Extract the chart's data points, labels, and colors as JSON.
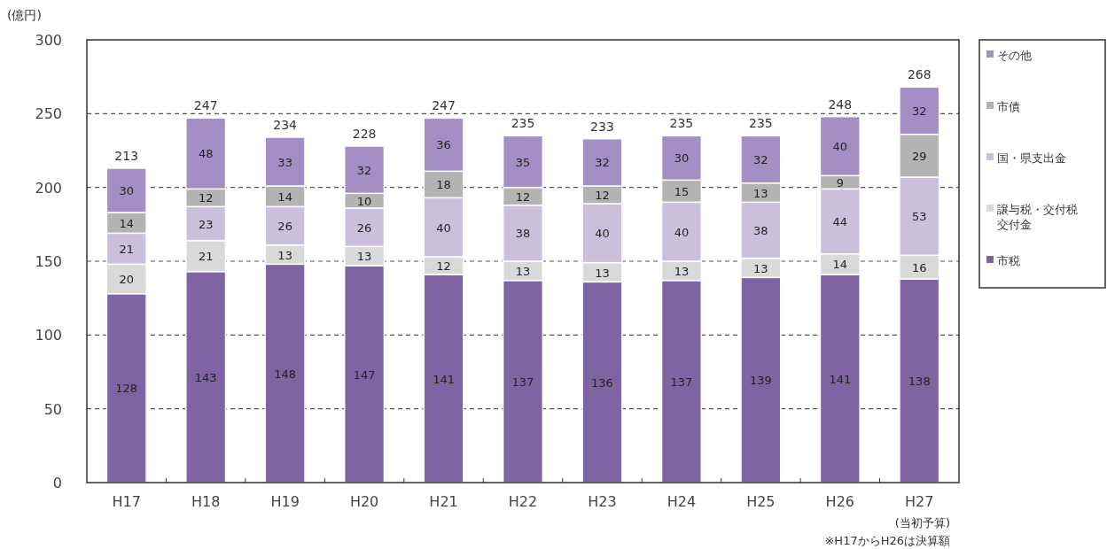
{
  "chart_data": {
    "type": "bar",
    "stacked": true,
    "ylabel": "(億円)",
    "categories": [
      "H17",
      "H18",
      "H19",
      "H20",
      "H21",
      "H22",
      "H23",
      "H24",
      "H25",
      "H26",
      "H27"
    ],
    "series": [
      {
        "name": "市税",
        "color": "#7f64a3",
        "values": [
          128,
          143,
          148,
          147,
          141,
          137,
          136,
          137,
          139,
          141,
          138
        ]
      },
      {
        "name": "譲与税・交付税交付金",
        "color": "#d9d9d9",
        "values": [
          20,
          21,
          13,
          13,
          12,
          13,
          13,
          13,
          13,
          14,
          16
        ]
      },
      {
        "name": "国・県支出金",
        "color": "#cbc0dc",
        "values": [
          21,
          23,
          26,
          26,
          40,
          38,
          40,
          40,
          38,
          44,
          53
        ]
      },
      {
        "name": "市債",
        "color": "#b3b3b3",
        "values": [
          14,
          12,
          14,
          10,
          18,
          12,
          12,
          15,
          13,
          9,
          29
        ]
      },
      {
        "name": "その他",
        "color": "#a48fc4",
        "values": [
          30,
          48,
          33,
          32,
          36,
          35,
          32,
          30,
          32,
          40,
          32
        ]
      }
    ],
    "totals": [
      "213",
      "247",
      "234",
      "228",
      "247",
      "235",
      "233",
      "235",
      "235",
      "248",
      "268"
    ],
    "ylim": [
      0,
      300
    ],
    "yticks": [
      0,
      50,
      100,
      150,
      200,
      250,
      300
    ],
    "grid": "y",
    "data_labels": true,
    "legend": "right",
    "annotations": [
      "(当初予算)",
      "※H17からH26は決算額"
    ]
  }
}
